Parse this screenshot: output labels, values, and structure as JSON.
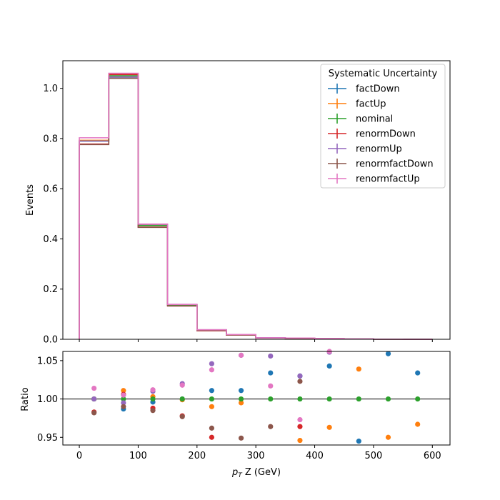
{
  "chart_data": [
    {
      "type": "step",
      "panel": "top",
      "ylabel": "Events",
      "xlim": [
        -28,
        630
      ],
      "ylim": [
        0,
        1.11
      ],
      "yticks": [
        0.0,
        0.2,
        0.4,
        0.6,
        0.8,
        1.0
      ],
      "ytick_labels": [
        "0.0",
        "0.2",
        "0.4",
        "0.6",
        "0.8",
        "1.0"
      ],
      "bin_edges": [
        0,
        50,
        100,
        150,
        200,
        250,
        300,
        350,
        400,
        450,
        500,
        550,
        600
      ],
      "legend": {
        "title": "Systematic Uncertainty",
        "placement": "upper right"
      },
      "series": [
        {
          "name": "factDown",
          "color": "#1f77b4",
          "values": [
            0.79,
            1.04,
            0.455,
            0.136,
            0.037,
            0.019,
            0.006,
            0.005,
            0.003,
            0.0012,
            0.0006,
            0.0003
          ]
        },
        {
          "name": "factUp",
          "color": "#ff7f0e",
          "values": [
            0.793,
            1.058,
            0.457,
            0.137,
            0.035,
            0.018,
            0.005,
            0.004,
            0.003,
            0.0011,
            0.0005,
            0.0003
          ]
        },
        {
          "name": "nominal",
          "color": "#2ca02c",
          "values": [
            0.79,
            1.05,
            0.453,
            0.136,
            0.036,
            0.018,
            0.005,
            0.004,
            0.003,
            0.0011,
            0.0005,
            0.0003
          ]
        },
        {
          "name": "renormDown",
          "color": "#d62728",
          "values": [
            0.778,
            1.055,
            0.447,
            0.133,
            0.034,
            0.017,
            0.005,
            0.004,
            0.003,
            0.0011,
            0.0005,
            0.0003
          ]
        },
        {
          "name": "renormUp",
          "color": "#9467bd",
          "values": [
            0.79,
            1.045,
            0.458,
            0.139,
            0.038,
            0.019,
            0.006,
            0.005,
            0.003,
            0.0012,
            0.0006,
            0.0003
          ]
        },
        {
          "name": "renormfactDown",
          "color": "#8c564b",
          "values": [
            0.776,
            1.04,
            0.446,
            0.133,
            0.035,
            0.017,
            0.005,
            0.004,
            0.003,
            0.0011,
            0.0005,
            0.0003
          ]
        },
        {
          "name": "renormfactUp",
          "color": "#e377c2",
          "values": [
            0.803,
            1.06,
            0.459,
            0.139,
            0.038,
            0.019,
            0.006,
            0.005,
            0.003,
            0.0012,
            0.0006,
            0.0003
          ]
        }
      ]
    },
    {
      "type": "scatter",
      "panel": "bottom",
      "ylabel": "Ratio",
      "xlabel": "p_T Z (GeV)",
      "xlim": [
        -28,
        630
      ],
      "ylim": [
        0.94,
        1.062
      ],
      "yticks": [
        0.95,
        1.0,
        1.05
      ],
      "ytick_labels": [
        "0.95",
        "1.00",
        "1.05"
      ],
      "xticks": [
        0,
        100,
        200,
        300,
        400,
        500,
        600
      ],
      "xtick_labels": [
        "0",
        "100",
        "200",
        "300",
        "400",
        "500",
        "600"
      ],
      "reference_line": 1.0,
      "x": [
        25,
        75,
        125,
        175,
        225,
        275,
        325,
        375,
        425,
        475,
        525,
        575
      ],
      "series": [
        {
          "name": "factDown",
          "color": "#1f77b4",
          "values": [
            1.0,
            0.987,
            0.996,
            1.0,
            1.011,
            1.011,
            1.034,
            1.03,
            1.043,
            0.945,
            1.059,
            1.034
          ]
        },
        {
          "name": "factUp",
          "color": "#ff7f0e",
          "values": [
            1.0,
            1.011,
            1.003,
            0.999,
            0.99,
            0.995,
            null,
            0.946,
            0.963,
            1.039,
            0.95,
            0.967
          ]
        },
        {
          "name": "nominal",
          "color": "#2ca02c",
          "values": [
            1.0,
            1.0,
            1.0,
            1.0,
            1.0,
            1.0,
            1.0,
            1.0,
            1.0,
            1.0,
            1.0,
            1.0
          ]
        },
        {
          "name": "renormDown",
          "color": "#d62728",
          "values": [
            0.983,
            1.006,
            0.988,
            0.978,
            0.95,
            null,
            null,
            0.964,
            null,
            null,
            null,
            null
          ]
        },
        {
          "name": "renormUp",
          "color": "#9467bd",
          "values": [
            1.0,
            0.995,
            1.01,
            1.02,
            1.046,
            1.057,
            1.056,
            1.03,
            1.061,
            null,
            null,
            null
          ]
        },
        {
          "name": "renormfactDown",
          "color": "#8c564b",
          "values": [
            0.982,
            0.99,
            0.985,
            0.977,
            0.962,
            0.949,
            0.964,
            1.023,
            null,
            null,
            null,
            null
          ]
        },
        {
          "name": "renormfactUp",
          "color": "#e377c2",
          "values": [
            1.014,
            1.005,
            1.012,
            1.018,
            1.038,
            1.057,
            1.017,
            0.973,
            1.062,
            null,
            null,
            null
          ]
        }
      ]
    }
  ]
}
